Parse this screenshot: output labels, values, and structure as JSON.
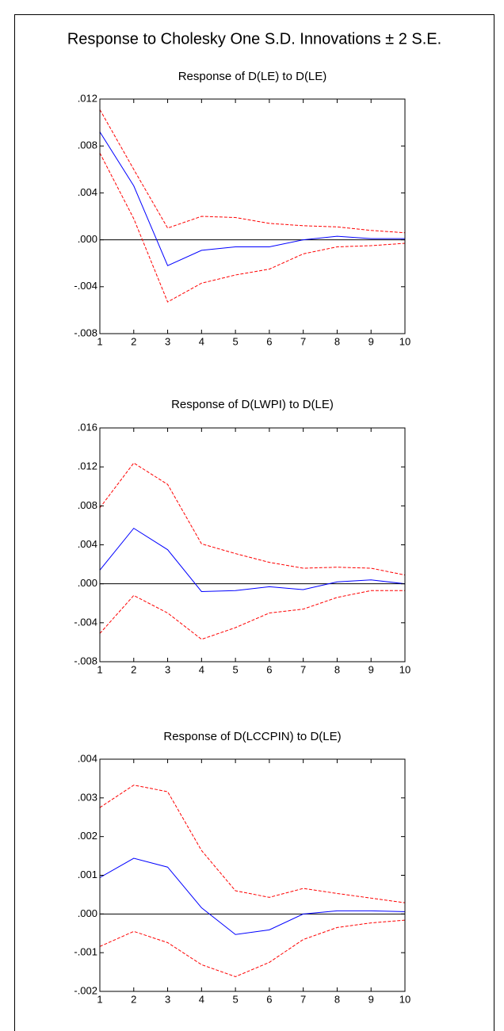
{
  "title": "Response to Cholesky One S.D. Innovations ± 2 S.E.",
  "chart_data": [
    {
      "type": "line",
      "title": "Response of D(LE) to D(LE)",
      "x": [
        1,
        2,
        3,
        4,
        5,
        6,
        7,
        8,
        9,
        10
      ],
      "xlim": [
        1,
        10
      ],
      "xticks": [
        1,
        2,
        3,
        4,
        5,
        6,
        7,
        8,
        9,
        10
      ],
      "ylim": [
        -0.008,
        0.012
      ],
      "yticks": [
        {
          "value": -0.008,
          "label": "-.008"
        },
        {
          "value": -0.004,
          "label": "-.004"
        },
        {
          "value": 0,
          "label": ".000"
        },
        {
          "value": 0.004,
          "label": ".004"
        },
        {
          "value": 0.008,
          "label": ".008"
        },
        {
          "value": 0.012,
          "label": ".012"
        }
      ],
      "zero_line": true,
      "series": [
        {
          "color": "#0000ff",
          "dashed": false,
          "values": [
            0.0092,
            0.0046,
            -0.0022,
            -0.0009,
            -0.0006,
            -0.0006,
            0.0,
            0.0003,
            0.0001,
            0.0001
          ]
        },
        {
          "color": "#ff0000",
          "dashed": true,
          "values": [
            0.0111,
            0.006,
            0.001,
            0.002,
            0.0019,
            0.0014,
            0.0012,
            0.0011,
            0.0008,
            0.0006
          ]
        },
        {
          "color": "#ff0000",
          "dashed": true,
          "values": [
            0.0074,
            0.0018,
            -0.0053,
            -0.0037,
            -0.003,
            -0.0025,
            -0.0012,
            -0.0006,
            -0.0005,
            -0.0003
          ]
        }
      ]
    },
    {
      "type": "line",
      "title": "Response of D(LWPI) to D(LE)",
      "x": [
        1,
        2,
        3,
        4,
        5,
        6,
        7,
        8,
        9,
        10
      ],
      "xlim": [
        1,
        10
      ],
      "xticks": [
        1,
        2,
        3,
        4,
        5,
        6,
        7,
        8,
        9,
        10
      ],
      "ylim": [
        -0.008,
        0.016
      ],
      "yticks": [
        {
          "value": -0.008,
          "label": "-.008"
        },
        {
          "value": -0.004,
          "label": "-.004"
        },
        {
          "value": 0,
          "label": ".000"
        },
        {
          "value": 0.004,
          "label": ".004"
        },
        {
          "value": 0.008,
          "label": ".008"
        },
        {
          "value": 0.012,
          "label": ".012"
        },
        {
          "value": 0.016,
          "label": ".016"
        }
      ],
      "zero_line": true,
      "series": [
        {
          "color": "#0000ff",
          "dashed": false,
          "values": [
            0.0014,
            0.0057,
            0.0035,
            -0.0008,
            -0.0007,
            -0.0003,
            -0.0006,
            0.0002,
            0.0004,
            0.0
          ]
        },
        {
          "color": "#ff0000",
          "dashed": true,
          "values": [
            0.0078,
            0.0124,
            0.0102,
            0.0041,
            0.0031,
            0.0022,
            0.0016,
            0.0017,
            0.0016,
            0.0009
          ]
        },
        {
          "color": "#ff0000",
          "dashed": true,
          "values": [
            -0.0051,
            -0.0012,
            -0.003,
            -0.0057,
            -0.0045,
            -0.003,
            -0.0026,
            -0.0014,
            -0.0007,
            -0.0007
          ]
        }
      ]
    },
    {
      "type": "line",
      "title": "Response of D(LCCPIN) to D(LE)",
      "x": [
        1,
        2,
        3,
        4,
        5,
        6,
        7,
        8,
        9,
        10
      ],
      "xlim": [
        1,
        10
      ],
      "xticks": [
        1,
        2,
        3,
        4,
        5,
        6,
        7,
        8,
        9,
        10
      ],
      "ylim": [
        -0.002,
        0.004
      ],
      "yticks": [
        {
          "value": -0.002,
          "label": "-.002"
        },
        {
          "value": -0.001,
          "label": "-.001"
        },
        {
          "value": 0,
          "label": ".000"
        },
        {
          "value": 0.001,
          "label": ".001"
        },
        {
          "value": 0.002,
          "label": ".002"
        },
        {
          "value": 0.003,
          "label": ".003"
        },
        {
          "value": 0.004,
          "label": ".004"
        }
      ],
      "zero_line": true,
      "series": [
        {
          "color": "#0000ff",
          "dashed": false,
          "values": [
            0.00094,
            0.00144,
            0.00121,
            0.00016,
            -0.00053,
            -0.00041,
            0.0,
            8e-05,
            8e-05,
            6e-05
          ]
        },
        {
          "color": "#ff0000",
          "dashed": true,
          "values": [
            0.00275,
            0.00333,
            0.00316,
            0.00164,
            0.0006,
            0.00043,
            0.00066,
            0.00053,
            0.00041,
            0.00029
          ]
        },
        {
          "color": "#ff0000",
          "dashed": true,
          "values": [
            -0.00084,
            -0.00045,
            -0.00074,
            -0.00131,
            -0.00162,
            -0.00125,
            -0.00066,
            -0.00035,
            -0.00023,
            -0.00016
          ]
        }
      ]
    }
  ]
}
